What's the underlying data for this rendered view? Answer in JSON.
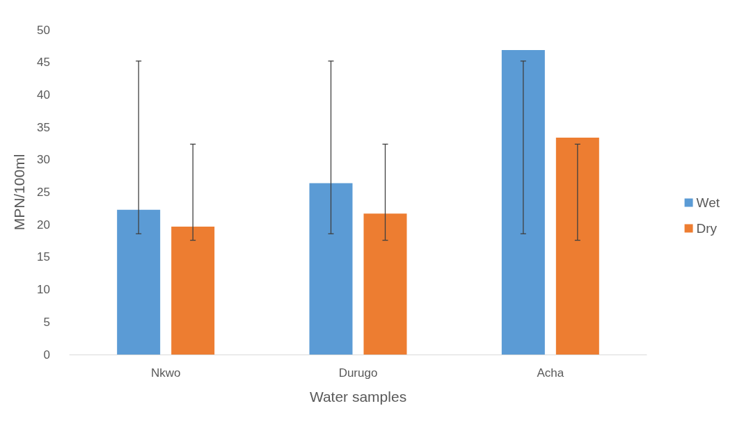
{
  "chart_data": {
    "type": "bar",
    "xlabel": "Water samples",
    "ylabel": "MPN/100ml",
    "categories": [
      "Nkwo",
      "Durugo",
      "Acha"
    ],
    "series": [
      {
        "name": "Wet",
        "color": "#5b9bd5",
        "values": [
          22.3,
          26.4,
          46.9
        ],
        "errors": [
          [
            18.6,
            45.2
          ],
          [
            18.6,
            45.2
          ],
          [
            18.6,
            45.2
          ]
        ]
      },
      {
        "name": "Dry",
        "color": "#ed7d31",
        "values": [
          19.7,
          21.7,
          33.4
        ],
        "errors": [
          [
            17.6,
            32.4
          ],
          [
            17.6,
            32.4
          ],
          [
            17.6,
            32.4
          ]
        ]
      }
    ],
    "ylim": [
      0,
      50
    ],
    "yticks": [
      0,
      5,
      10,
      15,
      20,
      25,
      30,
      35,
      40,
      45,
      50
    ],
    "grid": false,
    "legend": "right"
  }
}
